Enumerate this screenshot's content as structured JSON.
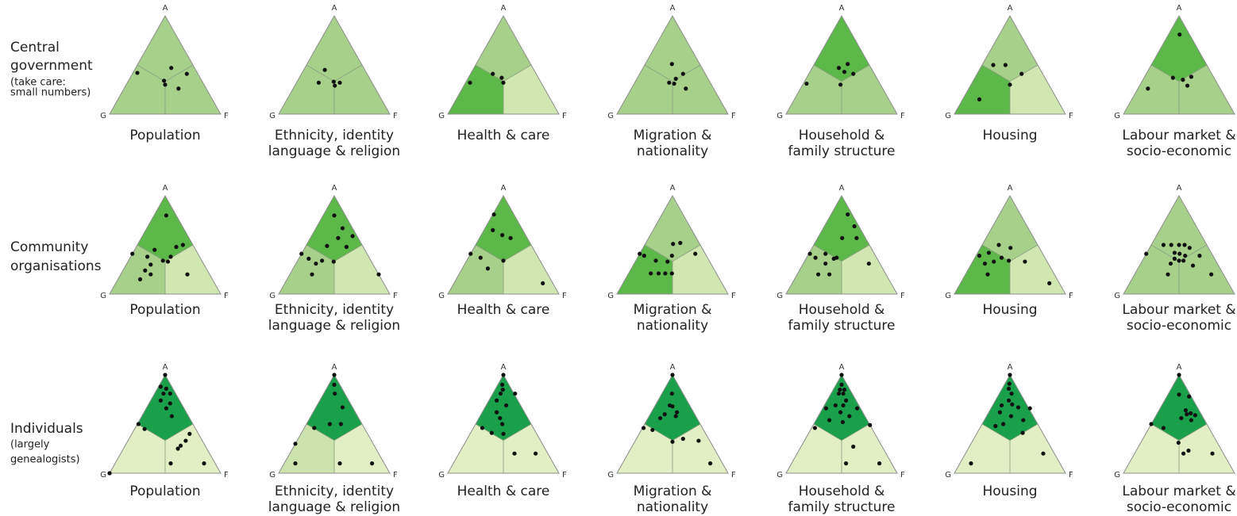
{
  "row_labels": [
    {
      "label": [
        "Central",
        "government"
      ],
      "note": [
        "(take care:",
        " small numbers)"
      ]
    },
    {
      "label": [
        "Community",
        "organisations"
      ]
    },
    {
      "label": [
        "Individuals"
      ],
      "note": [
        "(largely",
        "genealogists)"
      ]
    }
  ],
  "chart_data": [
    {
      "type": "ternary",
      "title": [
        "Population"
      ],
      "vertices": [
        "A",
        "G",
        "F"
      ],
      "region_colors": [
        "#a7d18b",
        "#a7d18b",
        "#a7d18b"
      ],
      "points": [
        [
          0.42,
          0.04
        ],
        [
          0.47,
          0.32
        ],
        [
          0.41,
          0.49
        ],
        [
          0.34,
          0.32
        ],
        [
          0.3,
          0.35
        ],
        [
          0.26,
          0.49
        ]
      ]
    },
    {
      "type": "ternary",
      "title": [
        "Ethnicity, identity",
        "language & religion"
      ],
      "vertices": [
        "A",
        "G",
        "F"
      ],
      "region_colors": [
        "#a7d18b",
        "#a7d18b",
        "#a7d18b"
      ],
      "points": [
        [
          0.45,
          0.19
        ],
        [
          0.32,
          0.2
        ],
        [
          0.33,
          0.33
        ],
        [
          0.32,
          0.39
        ],
        [
          0.29,
          0.36
        ]
      ]
    },
    {
      "type": "ternary",
      "title": [
        "Health & care"
      ],
      "vertices": [
        "A",
        "G",
        "F"
      ],
      "region_colors": [
        "#a7d18b",
        "#5cb848",
        "#d1e7b1"
      ],
      "points": [
        [
          0.41,
          0.2
        ],
        [
          0.37,
          0.3
        ],
        [
          0.32,
          0.34
        ],
        [
          0.32,
          0.04
        ]
      ]
    },
    {
      "type": "ternary",
      "title": [
        "Migration &",
        "nationality"
      ],
      "vertices": [
        "A",
        "G",
        "F"
      ],
      "region_colors": [
        "#a7d18b",
        "#a7d18b",
        "#a7d18b"
      ],
      "points": [
        [
          0.51,
          0.24
        ],
        [
          0.41,
          0.39
        ],
        [
          0.36,
          0.35
        ],
        [
          0.32,
          0.31
        ],
        [
          0.31,
          0.36
        ],
        [
          0.26,
          0.49
        ]
      ]
    },
    {
      "type": "ternary",
      "title": [
        "Household &",
        "family structure"
      ],
      "vertices": [
        "A",
        "G",
        "F"
      ],
      "region_colors": [
        "#5cb848",
        "#a7d18b",
        "#a7d18b"
      ],
      "points": [
        [
          0.31,
          0.03
        ],
        [
          0.47,
          0.24
        ],
        [
          0.51,
          0.3
        ],
        [
          0.43,
          0.31
        ],
        [
          0.41,
          0.4
        ],
        [
          0.3,
          0.34
        ]
      ]
    },
    {
      "type": "ternary",
      "title": [
        "Housing"
      ],
      "vertices": [
        "A",
        "G",
        "F"
      ],
      "region_colors": [
        "#a7d18b",
        "#5cb848",
        "#d1e7b1"
      ],
      "points": [
        [
          0.5,
          0.1
        ],
        [
          0.5,
          0.21
        ],
        [
          0.41,
          0.4
        ],
        [
          0.3,
          0.35
        ],
        [
          0.15,
          0.15
        ]
      ]
    },
    {
      "type": "ternary",
      "title": [
        "Labour market &",
        "socio-economic"
      ],
      "vertices": [
        "A",
        "G",
        "F"
      ],
      "region_colors": [
        "#5cb848",
        "#a7d18b",
        "#a7d18b"
      ],
      "points": [
        [
          0.81,
          0.1
        ],
        [
          0.26,
          0.09
        ],
        [
          0.37,
          0.26
        ],
        [
          0.35,
          0.36
        ],
        [
          0.38,
          0.42
        ],
        [
          0.29,
          0.43
        ]
      ]
    },
    {
      "type": "ternary",
      "title": [
        "Population"
      ],
      "vertices": [
        "A",
        "G",
        "F"
      ],
      "region_colors": [
        "#5cb848",
        "#a7d18b",
        "#d1e7b1"
      ],
      "points": [
        [
          0.8,
          0.11
        ],
        [
          0.41,
          0.0
        ],
        [
          0.48,
          0.36
        ],
        [
          0.5,
          0.41
        ],
        [
          0.38,
          0.36
        ],
        [
          0.45,
          0.18
        ],
        [
          0.38,
          0.15
        ],
        [
          0.34,
          0.31
        ],
        [
          0.33,
          0.36
        ],
        [
          0.3,
          0.22
        ],
        [
          0.24,
          0.2
        ],
        [
          0.2,
          0.27
        ],
        [
          0.15,
          0.2
        ],
        [
          0.2,
          0.6
        ]
      ]
    },
    {
      "type": "ternary",
      "title": [
        "Ethnicity, identity",
        "language & religion"
      ],
      "vertices": [
        "A",
        "G",
        "F"
      ],
      "region_colors": [
        "#5cb848",
        "#a7d18b",
        "#d1e7b1"
      ],
      "points": [
        [
          0.8,
          0.1
        ],
        [
          0.67,
          0.24
        ],
        [
          0.59,
          0.37
        ],
        [
          0.57,
          0.25
        ],
        [
          0.49,
          0.19
        ],
        [
          0.41,
          0.0
        ],
        [
          0.36,
          0.09
        ],
        [
          0.31,
          0.18
        ],
        [
          0.34,
          0.22
        ],
        [
          0.33,
          0.33
        ],
        [
          0.2,
          0.2
        ],
        [
          0.2,
          0.8
        ],
        [
          0.48,
          0.37
        ]
      ]
    },
    {
      "type": "ternary",
      "title": [
        "Health & care"
      ],
      "vertices": [
        "A",
        "G",
        "F"
      ],
      "region_colors": [
        "#5cb848",
        "#a7d18b",
        "#d1e7b1"
      ],
      "points": [
        [
          0.81,
          0.01
        ],
        [
          0.6,
          0.19
        ],
        [
          0.57,
          0.28
        ],
        [
          0.65,
          0.08
        ],
        [
          0.41,
          0.0
        ],
        [
          0.37,
          0.11
        ],
        [
          0.26,
          0.23
        ],
        [
          0.34,
          0.33
        ],
        [
          0.11,
          0.8
        ]
      ]
    },
    {
      "type": "ternary",
      "title": [
        "Migration &",
        "nationality"
      ],
      "vertices": [
        "A",
        "G",
        "F"
      ],
      "region_colors": [
        "#a7d18b",
        "#5cb848",
        "#d1e7b1"
      ],
      "points": [
        [
          0.51,
          0.25
        ],
        [
          0.52,
          0.31
        ],
        [
          0.41,
          0.5
        ],
        [
          0.41,
          0.0
        ],
        [
          0.39,
          0.05
        ],
        [
          0.39,
          0.3
        ],
        [
          0.34,
          0.18
        ],
        [
          0.33,
          0.29
        ],
        [
          0.21,
          0.2
        ],
        [
          0.21,
          0.27
        ],
        [
          0.21,
          0.33
        ],
        [
          0.21,
          0.39
        ]
      ]
    },
    {
      "type": "ternary",
      "title": [
        "Household &",
        "family structure"
      ],
      "vertices": [
        "A",
        "G",
        "F"
      ],
      "region_colors": [
        "#5cb848",
        "#a7d18b",
        "#d1e7b1"
      ],
      "points": [
        [
          0.81,
          0.15
        ],
        [
          0.69,
          0.27
        ],
        [
          0.57,
          0.35
        ],
        [
          0.57,
          0.22
        ],
        [
          0.41,
          0.01
        ],
        [
          0.37,
          0.08
        ],
        [
          0.41,
          0.15
        ],
        [
          0.31,
          0.2
        ],
        [
          0.36,
          0.25
        ],
        [
          0.37,
          0.27
        ],
        [
          0.2,
          0.19
        ],
        [
          0.2,
          0.29
        ],
        [
          0.31,
          0.59
        ]
      ]
    },
    {
      "type": "ternary",
      "title": [
        "Housing"
      ],
      "vertices": [
        "A",
        "G",
        "F"
      ],
      "region_colors": [
        "#a7d18b",
        "#5cb848",
        "#d1e7b1"
      ],
      "points": [
        [
          0.5,
          0.15
        ],
        [
          0.47,
          0.27
        ],
        [
          0.42,
          0.1
        ],
        [
          0.39,
          0.03
        ],
        [
          0.37,
          0.24
        ],
        [
          0.34,
          0.32
        ],
        [
          0.33,
          0.19
        ],
        [
          0.31,
          0.12
        ],
        [
          0.2,
          0.2
        ],
        [
          0.33,
          0.47
        ],
        [
          0.11,
          0.8
        ]
      ]
    },
    {
      "type": "ternary",
      "title": [
        "Labour market &",
        "socio-economic"
      ],
      "vertices": [
        "A",
        "G",
        "F"
      ],
      "region_colors": [
        "#a7d18b",
        "#a7d18b",
        "#a7d18b"
      ],
      "points": [
        [
          0.5,
          0.11
        ],
        [
          0.5,
          0.18
        ],
        [
          0.5,
          0.25
        ],
        [
          0.5,
          0.3
        ],
        [
          0.47,
          0.36
        ],
        [
          0.42,
          0.25
        ],
        [
          0.41,
          0.3
        ],
        [
          0.39,
          0.36
        ],
        [
          0.39,
          0.49
        ],
        [
          0.41,
          0.0
        ],
        [
          0.36,
          0.28
        ],
        [
          0.34,
          0.33
        ],
        [
          0.34,
          0.37
        ],
        [
          0.31,
          0.27
        ],
        [
          0.29,
          0.48
        ],
        [
          0.2,
          0.3
        ],
        [
          0.2,
          0.69
        ]
      ]
    },
    {
      "type": "ternary",
      "title": [
        "Population"
      ],
      "vertices": [
        "A",
        "G",
        "F"
      ],
      "region_colors": [
        "#1a9f4a",
        "#e2efc5",
        "#e2efc5"
      ],
      "points": [
        [
          1,
          0
        ],
        [
          0.88,
          0.02
        ],
        [
          0.86,
          0.08
        ],
        [
          0.81,
          0.08
        ],
        [
          0.81,
          0.14
        ],
        [
          0.74,
          0.09
        ],
        [
          0.71,
          0.19
        ],
        [
          0.66,
          0.18
        ],
        [
          0.58,
          0.27
        ],
        [
          0.5,
          0.01
        ],
        [
          0.45,
          0.09
        ],
        [
          0.4,
          0.52
        ],
        [
          0.33,
          0.52
        ],
        [
          0.28,
          0.5
        ],
        [
          0.25,
          0.49
        ],
        [
          0.1,
          0.5
        ],
        [
          0.1,
          0.8
        ],
        [
          0,
          0
        ]
      ]
    },
    {
      "type": "ternary",
      "title": [
        "Ethnicity, identity",
        "language & religion"
      ],
      "vertices": [
        "A",
        "G",
        "F"
      ],
      "region_colors": [
        "#1a9f4a",
        "#cde3ad",
        "#e2efc5"
      ],
      "points": [
        [
          1,
          0
        ],
        [
          0.9,
          0.05
        ],
        [
          0.81,
          0.1
        ],
        [
          0.67,
          0.24
        ],
        [
          0.5,
          0.21
        ],
        [
          0.5,
          0.31
        ],
        [
          0.46,
          0.09
        ],
        [
          0.3,
          0.0
        ],
        [
          0.1,
          0.1
        ],
        [
          0.1,
          0.5
        ],
        [
          0.1,
          0.79
        ]
      ]
    },
    {
      "type": "ternary",
      "title": [
        "Health & care"
      ],
      "vertices": [
        "A",
        "G",
        "F"
      ],
      "region_colors": [
        "#1a9f4a",
        "#e2efc5",
        "#e2efc5"
      ],
      "points": [
        [
          1,
          0
        ],
        [
          0.9,
          0.04
        ],
        [
          0.85,
          0.07
        ],
        [
          0.81,
          0.07
        ],
        [
          0.81,
          0.2
        ],
        [
          0.74,
          0.07
        ],
        [
          0.69,
          0.18
        ],
        [
          0.62,
          0.13
        ],
        [
          0.56,
          0.19
        ],
        [
          0.5,
          0.24
        ],
        [
          0.46,
          0.08
        ],
        [
          0.41,
          0.19
        ],
        [
          0.4,
          0.3
        ],
        [
          0.2,
          0.5
        ],
        [
          0.2,
          0.69
        ]
      ]
    },
    {
      "type": "ternary",
      "title": [
        "Migration &",
        "nationality"
      ],
      "vertices": [
        "A",
        "G",
        "F"
      ],
      "region_colors": [
        "#1a9f4a",
        "#e2efc5",
        "#e2efc5"
      ],
      "points": [
        [
          1,
          0
        ],
        [
          0.81,
          0.09
        ],
        [
          0.69,
          0.13
        ],
        [
          0.68,
          0.16
        ],
        [
          0.62,
          0.23
        ],
        [
          0.6,
          0.13
        ],
        [
          0.58,
          0.24
        ],
        [
          0.56,
          0.11
        ],
        [
          0.46,
          0.01
        ],
        [
          0.44,
          0.1
        ],
        [
          0.32,
          0.34
        ],
        [
          0.35,
          0.42
        ],
        [
          0.33,
          0.57
        ],
        [
          0.1,
          0.79
        ]
      ]
    },
    {
      "type": "ternary",
      "title": [
        "Household &",
        "family structure"
      ],
      "vertices": [
        "A",
        "G",
        "F"
      ],
      "region_colors": [
        "#1a9f4a",
        "#e2efc5",
        "#e2efc5"
      ],
      "points": [
        [
          1,
          0
        ],
        [
          0.9,
          0.05
        ],
        [
          0.85,
          0.06
        ],
        [
          0.85,
          0.1
        ],
        [
          0.81,
          0.07
        ],
        [
          0.81,
          0.11
        ],
        [
          0.74,
          0.17
        ],
        [
          0.69,
          0.1
        ],
        [
          0.69,
          0.17
        ],
        [
          0.66,
          0.03
        ],
        [
          0.66,
          0.31
        ],
        [
          0.62,
          0.18
        ],
        [
          0.58,
          0.28
        ],
        [
          0.54,
          0.12
        ],
        [
          0.52,
          0.25
        ],
        [
          0.46,
          0.03
        ],
        [
          0.49,
          0.51
        ],
        [
          0.27,
          0.47
        ],
        [
          0.1,
          0.49
        ],
        [
          0.1,
          0.79
        ]
      ]
    },
    {
      "type": "ternary",
      "title": [
        "Housing"
      ],
      "vertices": [
        "A",
        "G",
        "F"
      ],
      "region_colors": [
        "#1a9f4a",
        "#e2efc5",
        "#e2efc5"
      ],
      "points": [
        [
          1,
          0
        ],
        [
          0.91,
          0.04
        ],
        [
          0.86,
          0.06
        ],
        [
          0.81,
          0.11
        ],
        [
          0.74,
          0.12
        ],
        [
          0.7,
          0.17
        ],
        [
          0.69,
          0.08
        ],
        [
          0.67,
          0.24
        ],
        [
          0.62,
          0.1
        ],
        [
          0.58,
          0.22
        ],
        [
          0.66,
          0.35
        ],
        [
          0.54,
          0.35
        ],
        [
          0.5,
          0.19
        ],
        [
          0.48,
          0.13
        ],
        [
          0.41,
          0.41
        ],
        [
          0.2,
          0.7
        ],
        [
          0.1,
          0.1
        ]
      ]
    },
    {
      "type": "ternary",
      "title": [
        "Labour market &",
        "socio-economic"
      ],
      "vertices": [
        "A",
        "G",
        "F"
      ],
      "region_colors": [
        "#1a9f4a",
        "#e2efc5",
        "#e2efc5"
      ],
      "points": [
        [
          1,
          0
        ],
        [
          0.8,
          0.1
        ],
        [
          0.78,
          0.2
        ],
        [
          0.64,
          0.24
        ],
        [
          0.61,
          0.3
        ],
        [
          0.59,
          0.35
        ],
        [
          0.6,
          0.27
        ],
        [
          0.56,
          0.24
        ],
        [
          0.54,
          0.34
        ],
        [
          0.5,
          0.0
        ],
        [
          0.46,
          0.13
        ],
        [
          0.31,
          0.34
        ],
        [
          0.23,
          0.47
        ],
        [
          0.2,
          0.44
        ],
        [
          0.2,
          0.7
        ]
      ]
    }
  ]
}
